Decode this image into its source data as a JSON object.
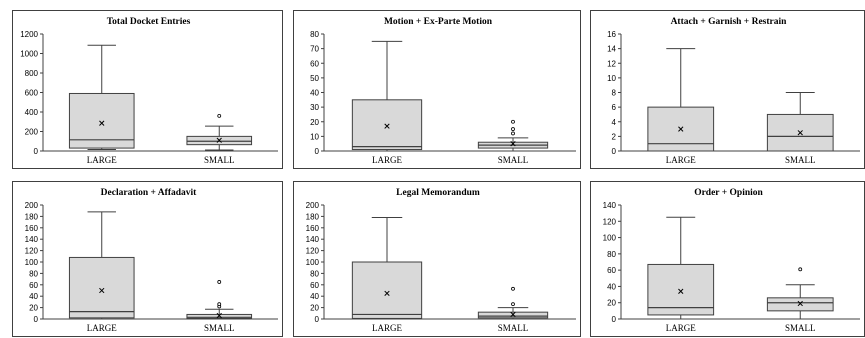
{
  "chart_data": [
    {
      "type": "box",
      "title": "Total Docket Entries",
      "categories": [
        "LARGE",
        "SMALL"
      ],
      "ylim": [
        0,
        1200
      ],
      "yticks": [
        0,
        200,
        400,
        600,
        800,
        1000,
        1200
      ],
      "boxes": [
        {
          "category": "LARGE",
          "min": 15,
          "q1": 30,
          "median": 115,
          "q3": 590,
          "max": 1085,
          "mean": 285,
          "outliers": []
        },
        {
          "category": "SMALL",
          "min": 10,
          "q1": 65,
          "median": 100,
          "q3": 150,
          "max": 255,
          "mean": 110,
          "outliers": [
            360
          ]
        }
      ]
    },
    {
      "type": "box",
      "title": "Motion + Ex-Parte Motion",
      "categories": [
        "LARGE",
        "SMALL"
      ],
      "ylim": [
        0,
        80
      ],
      "yticks": [
        0,
        10,
        20,
        30,
        40,
        50,
        60,
        70,
        80
      ],
      "boxes": [
        {
          "category": "LARGE",
          "min": 0,
          "q1": 1,
          "median": 3,
          "q3": 35,
          "max": 75,
          "mean": 17,
          "outliers": []
        },
        {
          "category": "SMALL",
          "min": 0,
          "q1": 2,
          "median": 4,
          "q3": 6,
          "max": 9,
          "mean": 5,
          "outliers": [
            12,
            15,
            20
          ]
        }
      ]
    },
    {
      "type": "box",
      "title": "Attach + Garnish + Restrain",
      "categories": [
        "LARGE",
        "SMALL"
      ],
      "ylim": [
        0,
        16
      ],
      "yticks": [
        0,
        2,
        4,
        6,
        8,
        10,
        12,
        14,
        16
      ],
      "boxes": [
        {
          "category": "LARGE",
          "min": 0,
          "q1": 0,
          "median": 1,
          "q3": 6,
          "max": 14,
          "mean": 3,
          "outliers": []
        },
        {
          "category": "SMALL",
          "min": 0,
          "q1": 0,
          "median": 2,
          "q3": 5,
          "max": 8,
          "mean": 2.5,
          "outliers": []
        }
      ]
    },
    {
      "type": "box",
      "title": "Declaration + Affadavit",
      "categories": [
        "LARGE",
        "SMALL"
      ],
      "ylim": [
        0,
        200
      ],
      "yticks": [
        0,
        20,
        40,
        60,
        80,
        100,
        120,
        140,
        160,
        180,
        200
      ],
      "boxes": [
        {
          "category": "LARGE",
          "min": 0,
          "q1": 2,
          "median": 13,
          "q3": 108,
          "max": 188,
          "mean": 50,
          "outliers": []
        },
        {
          "category": "SMALL",
          "min": 0,
          "q1": 1,
          "median": 3,
          "q3": 8,
          "max": 17,
          "mean": 6,
          "outliers": [
            22,
            26,
            65
          ]
        }
      ]
    },
    {
      "type": "box",
      "title": "Legal Memorandum",
      "categories": [
        "LARGE",
        "SMALL"
      ],
      "ylim": [
        0,
        200
      ],
      "yticks": [
        0,
        20,
        40,
        60,
        80,
        100,
        120,
        140,
        160,
        180,
        200
      ],
      "boxes": [
        {
          "category": "LARGE",
          "min": 0,
          "q1": 1,
          "median": 8,
          "q3": 100,
          "max": 178,
          "mean": 45,
          "outliers": []
        },
        {
          "category": "SMALL",
          "min": 0,
          "q1": 2,
          "median": 5,
          "q3": 12,
          "max": 20,
          "mean": 8,
          "outliers": [
            26,
            53
          ]
        }
      ]
    },
    {
      "type": "box",
      "title": "Order + Opinion",
      "categories": [
        "LARGE",
        "SMALL"
      ],
      "ylim": [
        0,
        140
      ],
      "yticks": [
        0,
        20,
        40,
        60,
        80,
        100,
        120,
        140
      ],
      "boxes": [
        {
          "category": "LARGE",
          "min": 0,
          "q1": 5,
          "median": 14,
          "q3": 67,
          "max": 125,
          "mean": 34,
          "outliers": []
        },
        {
          "category": "SMALL",
          "min": 0,
          "q1": 10,
          "median": 20,
          "q3": 26,
          "max": 42,
          "mean": 19,
          "outliers": [
            61
          ]
        }
      ]
    }
  ],
  "colors": {
    "box_fill": "#d9d9d9",
    "line": "#404040",
    "border": "#404040"
  }
}
